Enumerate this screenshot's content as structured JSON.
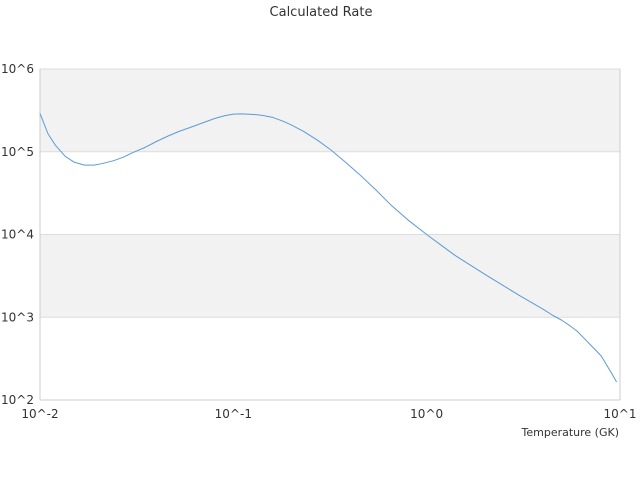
{
  "chart_data": {
    "type": "line",
    "title": "Calculated Rate",
    "xlabel": "Temperature (GK)",
    "ylabel": "",
    "xscale": "log",
    "yscale": "log",
    "xlim": [
      0.01,
      10
    ],
    "ylim": [
      100,
      1000000
    ],
    "x_ticks": [
      "10^-2",
      "10^-1",
      "10^0",
      "10^1"
    ],
    "y_ticks": [
      "10^2",
      "10^3",
      "10^4",
      "10^5",
      "10^6"
    ],
    "grid": "alternating horizontal bands",
    "legend": "none",
    "colors": {
      "line": "#5b9bd5",
      "band": "#f2f2f2",
      "gridline": "#dddddd",
      "axis": "#cccccc"
    },
    "series": [
      {
        "x": [
          0.01,
          0.011,
          0.012,
          0.0135,
          0.015,
          0.017,
          0.019,
          0.021,
          0.024,
          0.027,
          0.03,
          0.035,
          0.04,
          0.046,
          0.052,
          0.06,
          0.07,
          0.08,
          0.09,
          0.1,
          0.11,
          0.125,
          0.14,
          0.16,
          0.18,
          0.2,
          0.23,
          0.27,
          0.32,
          0.38,
          0.45,
          0.55,
          0.65,
          0.8,
          1.0,
          1.2,
          1.4,
          1.7,
          2.0,
          2.5,
          3.0,
          3.5,
          4.0,
          4.5,
          5.0,
          5.5,
          6.0,
          6.5,
          7.0,
          8.0,
          9.0,
          9.6
        ],
        "y": [
          290000,
          165000,
          120000,
          88000,
          75000,
          69000,
          69000,
          72000,
          78000,
          86000,
          97000,
          113000,
          133000,
          155000,
          175000,
          197000,
          225000,
          252000,
          272000,
          285000,
          287000,
          283000,
          276000,
          260000,
          235000,
          210000,
          177000,
          140000,
          105000,
          75000,
          53000,
          34000,
          23000,
          15000,
          10000,
          7300,
          5600,
          4200,
          3300,
          2400,
          1850,
          1500,
          1250,
          1050,
          920,
          790,
          680,
          560,
          470,
          340,
          215,
          165
        ]
      }
    ]
  }
}
